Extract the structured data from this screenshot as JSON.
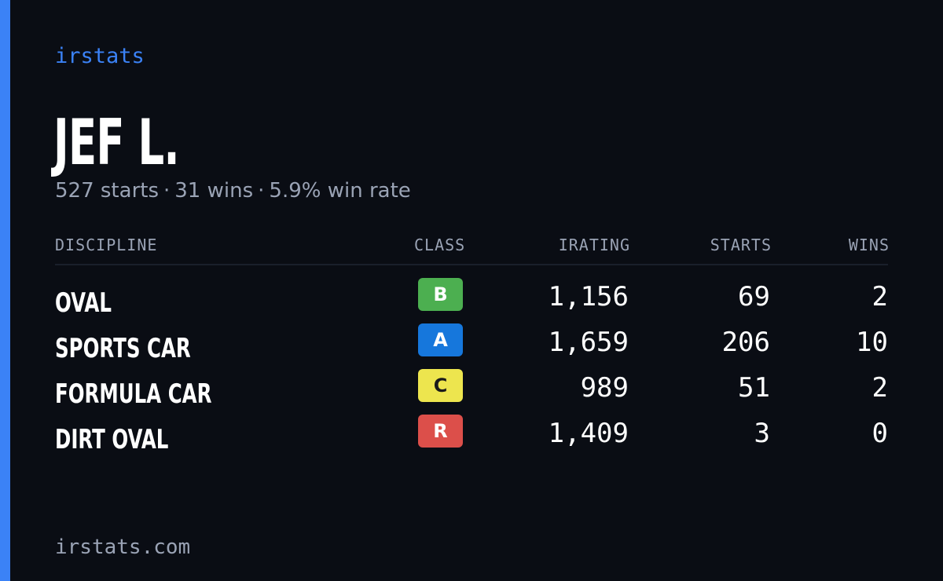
{
  "brand": "irstats",
  "driver": {
    "name": "JEF L."
  },
  "summary": {
    "starts": "527 starts",
    "wins": "31 wins",
    "win_rate": "5.9% win rate",
    "separator": "·"
  },
  "table": {
    "headers": {
      "discipline": "DISCIPLINE",
      "class": "CLASS",
      "irating": "IRATING",
      "starts": "STARTS",
      "wins": "WINS"
    },
    "rows": [
      {
        "discipline": "OVAL",
        "class": "B",
        "class_color": "#4caf50",
        "class_text_color": "#ffffff",
        "irating": "1,156",
        "starts": "69",
        "wins": "2"
      },
      {
        "discipline": "SPORTS CAR",
        "class": "A",
        "class_color": "#1677dc",
        "class_text_color": "#ffffff",
        "irating": "1,659",
        "starts": "206",
        "wins": "10"
      },
      {
        "discipline": "FORMULA CAR",
        "class": "C",
        "class_color": "#ede54e",
        "class_text_color": "#1a1a1a",
        "irating": "989",
        "starts": "51",
        "wins": "2"
      },
      {
        "discipline": "DIRT OVAL",
        "class": "R",
        "class_color": "#dc4f4a",
        "class_text_color": "#ffffff",
        "irating": "1,409",
        "starts": "3",
        "wins": "0"
      }
    ]
  },
  "footer": {
    "url": "irstats.com"
  },
  "colors": {
    "accent": "#3b82f6",
    "background": "#0a0d14",
    "muted_text": "#9aa3b5"
  }
}
